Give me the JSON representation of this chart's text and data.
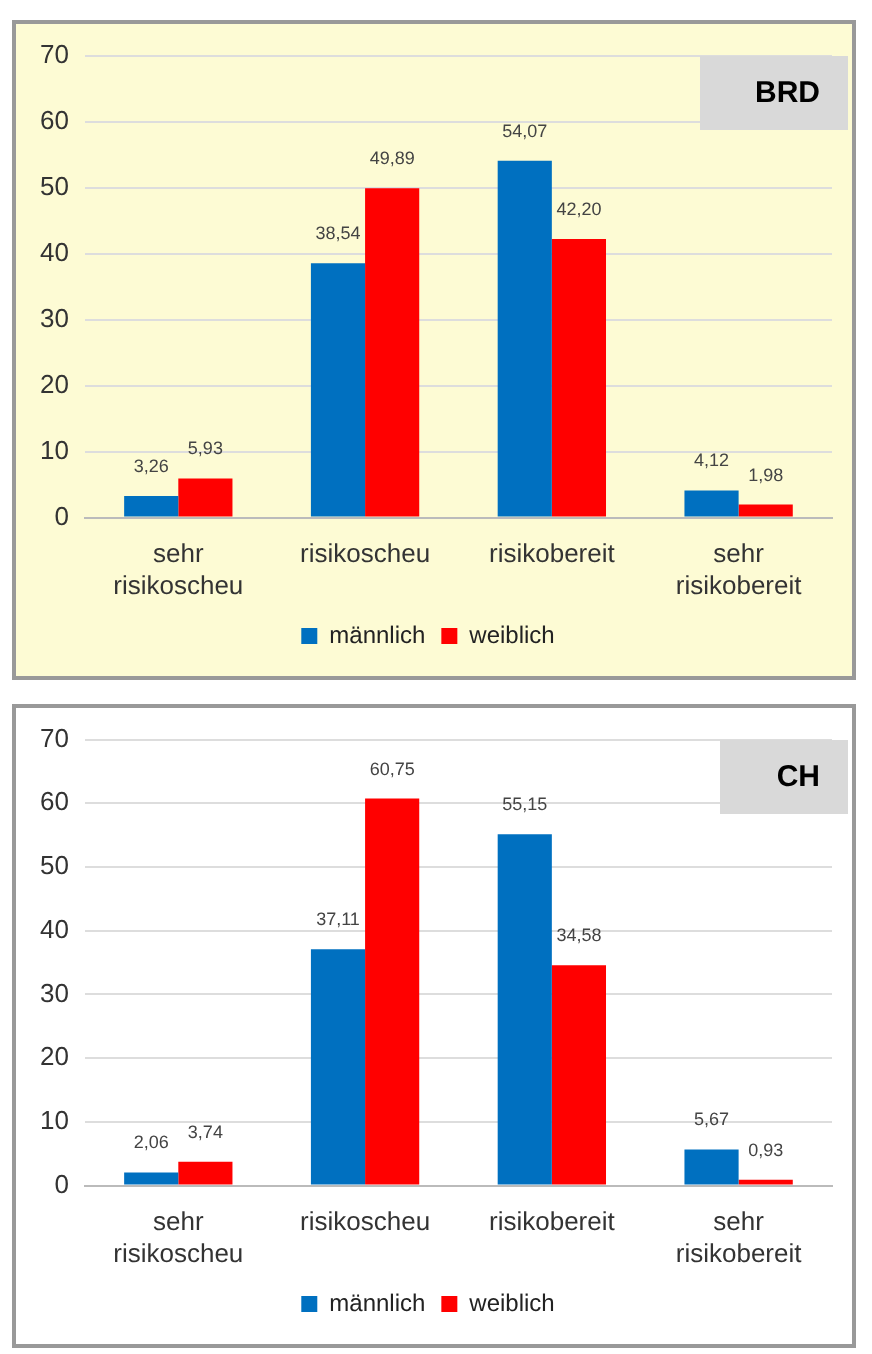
{
  "chart_data": [
    {
      "type": "bar",
      "title": "BRD",
      "categories": [
        "sehr risikoscheu",
        "risikoscheu",
        "risikobereit",
        "sehr risikobereit"
      ],
      "series": [
        {
          "name": "männlich",
          "color": "#0070c0",
          "values": [
            3.26,
            38.54,
            54.07,
            4.12
          ],
          "value_labels": [
            "3,26",
            "38,54",
            "54,07",
            "4,12"
          ]
        },
        {
          "name": "weiblich",
          "color": "#ff0000",
          "values": [
            5.93,
            49.89,
            42.2,
            1.98
          ],
          "value_labels": [
            "5,93",
            "49,89",
            "42,20",
            "1,98"
          ]
        }
      ],
      "ylim": [
        0,
        70
      ],
      "yticks": [
        0,
        10,
        20,
        30,
        40,
        50,
        60,
        70
      ],
      "grid": "y",
      "legend": "bottom"
    },
    {
      "type": "bar",
      "title": "CH",
      "categories": [
        "sehr risikoscheu",
        "risikoscheu",
        "risikobereit",
        "sehr risikobereit"
      ],
      "series": [
        {
          "name": "männlich",
          "color": "#0070c0",
          "values": [
            2.06,
            37.11,
            55.15,
            5.67
          ],
          "value_labels": [
            "2,06",
            "37,11",
            "55,15",
            "5,67"
          ]
        },
        {
          "name": "weiblich",
          "color": "#ff0000",
          "values": [
            3.74,
            60.75,
            34.58,
            0.93
          ],
          "value_labels": [
            "3,74",
            "60,75",
            "34,58",
            "0,93"
          ]
        }
      ],
      "ylim": [
        0,
        70
      ],
      "yticks": [
        0,
        10,
        20,
        30,
        40,
        50,
        60,
        70
      ],
      "grid": "y",
      "legend": "bottom"
    }
  ]
}
